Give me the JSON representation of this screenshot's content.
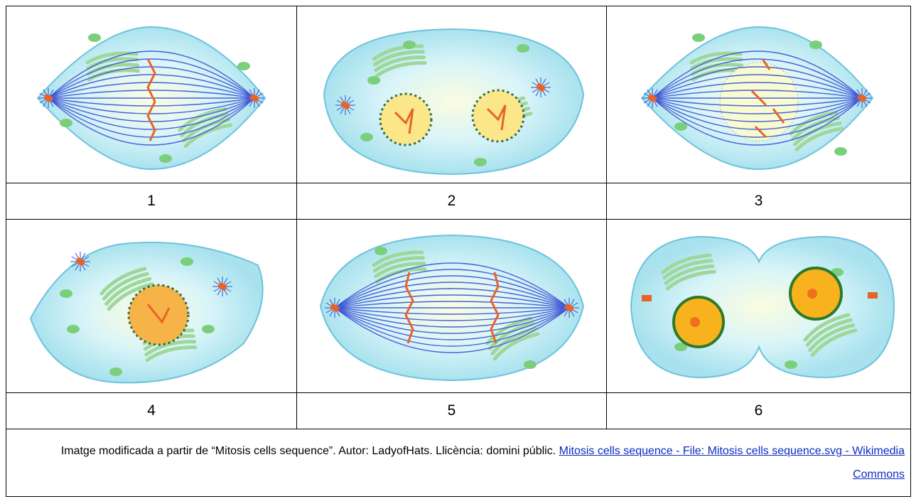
{
  "table": {
    "rows": [
      [
        "1",
        "2",
        "3"
      ],
      [
        "4",
        "5",
        "6"
      ]
    ]
  },
  "caption": {
    "text": "Imatge modificada a partir de “Mitosis cells sequence”. Autor: LadyofHats. Llicència: domini públic.",
    "link": "Mitosis cells sequence - File: Mitosis cells sequence.svg - Wikimedia Commons"
  }
}
